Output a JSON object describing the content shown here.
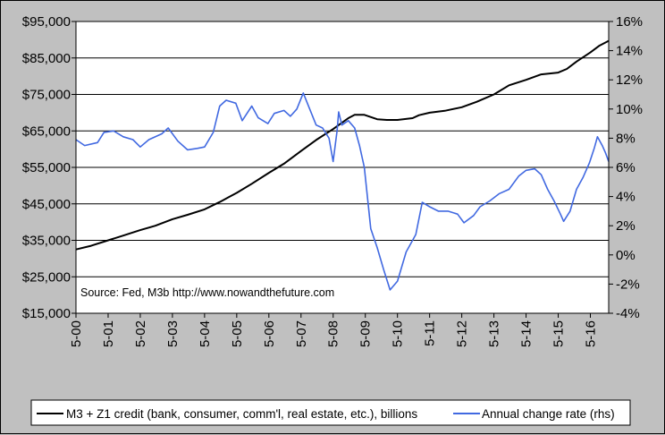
{
  "chart_data": {
    "type": "line",
    "title": "",
    "xlabel": "",
    "annotation": "Source: Fed, M3b  http://www.nowandthefuture.com",
    "x_ticks": [
      "5-00",
      "5-01",
      "5-02",
      "5-03",
      "5-04",
      "5-05",
      "5-06",
      "5-07",
      "5-08",
      "5-09",
      "5-10",
      "5-11",
      "5-12",
      "5-13",
      "5-14",
      "5-15",
      "5-16"
    ],
    "x_range": [
      2000.33,
      2016.9
    ],
    "y_left": {
      "label": "billions",
      "range": [
        15000,
        95000
      ],
      "ticks": [
        "$15,000",
        "$25,000",
        "$35,000",
        "$45,000",
        "$55,000",
        "$65,000",
        "$75,000",
        "$85,000",
        "$95,000"
      ],
      "tick_values": [
        15000,
        25000,
        35000,
        45000,
        55000,
        65000,
        75000,
        85000,
        95000
      ]
    },
    "y_right": {
      "label": "Annual change rate",
      "range": [
        -4,
        16
      ],
      "ticks": [
        "-4%",
        "-2%",
        "0%",
        "2%",
        "4%",
        "6%",
        "8%",
        "10%",
        "12%",
        "14%",
        "16%"
      ],
      "tick_values": [
        -4,
        -2,
        0,
        2,
        4,
        6,
        8,
        10,
        12,
        14,
        16
      ]
    },
    "gridlines": "horizontal",
    "legend_position": "bottom",
    "series": [
      {
        "name": "M3 + Z1 credit (bank, consumer, comm'l, real estate, etc.), billions",
        "axis": "left",
        "color": "#000000",
        "points": [
          [
            2000.33,
            32500
          ],
          [
            2000.8,
            33500
          ],
          [
            2001.33,
            35000
          ],
          [
            2001.8,
            36300
          ],
          [
            2002.33,
            37800
          ],
          [
            2002.8,
            39000
          ],
          [
            2003.33,
            40800
          ],
          [
            2003.8,
            42000
          ],
          [
            2004.33,
            43500
          ],
          [
            2004.8,
            45500
          ],
          [
            2005.33,
            48000
          ],
          [
            2005.8,
            50500
          ],
          [
            2006.33,
            53500
          ],
          [
            2006.8,
            56000
          ],
          [
            2007.33,
            59500
          ],
          [
            2007.8,
            62500
          ],
          [
            2008.33,
            65500
          ],
          [
            2008.8,
            68500
          ],
          [
            2009.0,
            69400
          ],
          [
            2009.3,
            69400
          ],
          [
            2009.7,
            68200
          ],
          [
            2010.0,
            68000
          ],
          [
            2010.33,
            68000
          ],
          [
            2010.8,
            68500
          ],
          [
            2011.0,
            69300
          ],
          [
            2011.33,
            70000
          ],
          [
            2011.8,
            70500
          ],
          [
            2012.33,
            71500
          ],
          [
            2012.8,
            73000
          ],
          [
            2013.33,
            75000
          ],
          [
            2013.8,
            77500
          ],
          [
            2014.33,
            79000
          ],
          [
            2014.8,
            80500
          ],
          [
            2015.33,
            81000
          ],
          [
            2015.6,
            82000
          ],
          [
            2015.9,
            84000
          ],
          [
            2016.33,
            86500
          ],
          [
            2016.6,
            88300
          ],
          [
            2016.9,
            89700
          ]
        ]
      },
      {
        "name": "Annual change rate (rhs)",
        "axis": "right",
        "color": "#4169e1",
        "points": [
          [
            2000.33,
            7.9
          ],
          [
            2000.6,
            7.5
          ],
          [
            2001.0,
            7.7
          ],
          [
            2001.2,
            8.4
          ],
          [
            2001.5,
            8.5
          ],
          [
            2001.8,
            8.1
          ],
          [
            2002.1,
            7.9
          ],
          [
            2002.33,
            7.4
          ],
          [
            2002.6,
            7.9
          ],
          [
            2003.0,
            8.3
          ],
          [
            2003.2,
            8.7
          ],
          [
            2003.5,
            7.8
          ],
          [
            2003.8,
            7.2
          ],
          [
            2004.1,
            7.3
          ],
          [
            2004.33,
            7.4
          ],
          [
            2004.6,
            8.4
          ],
          [
            2004.8,
            10.2
          ],
          [
            2005.0,
            10.6
          ],
          [
            2005.3,
            10.4
          ],
          [
            2005.5,
            9.2
          ],
          [
            2005.8,
            10.2
          ],
          [
            2006.0,
            9.4
          ],
          [
            2006.3,
            9.0
          ],
          [
            2006.5,
            9.7
          ],
          [
            2006.8,
            9.9
          ],
          [
            2007.0,
            9.5
          ],
          [
            2007.2,
            10.0
          ],
          [
            2007.4,
            11.1
          ],
          [
            2007.6,
            10.0
          ],
          [
            2007.8,
            8.9
          ],
          [
            2008.0,
            8.7
          ],
          [
            2008.2,
            8.0
          ],
          [
            2008.33,
            6.4
          ],
          [
            2008.45,
            8.5
          ],
          [
            2008.5,
            9.8
          ],
          [
            2008.6,
            8.9
          ],
          [
            2008.8,
            9.2
          ],
          [
            2009.0,
            8.7
          ],
          [
            2009.15,
            7.5
          ],
          [
            2009.3,
            6.0
          ],
          [
            2009.5,
            1.8
          ],
          [
            2009.7,
            0.5
          ],
          [
            2009.9,
            -1.0
          ],
          [
            2010.1,
            -2.4
          ],
          [
            2010.33,
            -1.8
          ],
          [
            2010.6,
            0.2
          ],
          [
            2010.9,
            1.4
          ],
          [
            2011.1,
            3.6
          ],
          [
            2011.33,
            3.3
          ],
          [
            2011.6,
            3.0
          ],
          [
            2011.9,
            3.0
          ],
          [
            2012.2,
            2.8
          ],
          [
            2012.4,
            2.2
          ],
          [
            2012.7,
            2.7
          ],
          [
            2012.9,
            3.3
          ],
          [
            2013.2,
            3.7
          ],
          [
            2013.5,
            4.2
          ],
          [
            2013.8,
            4.5
          ],
          [
            2014.1,
            5.4
          ],
          [
            2014.33,
            5.8
          ],
          [
            2014.6,
            5.9
          ],
          [
            2014.8,
            5.5
          ],
          [
            2015.0,
            4.5
          ],
          [
            2015.2,
            3.7
          ],
          [
            2015.4,
            2.8
          ],
          [
            2015.5,
            2.3
          ],
          [
            2015.7,
            3.0
          ],
          [
            2015.9,
            4.5
          ],
          [
            2016.1,
            5.3
          ],
          [
            2016.3,
            6.3
          ],
          [
            2016.45,
            7.3
          ],
          [
            2016.55,
            8.1
          ],
          [
            2016.7,
            7.5
          ],
          [
            2016.8,
            7.0
          ],
          [
            2016.9,
            6.4
          ]
        ]
      }
    ]
  }
}
